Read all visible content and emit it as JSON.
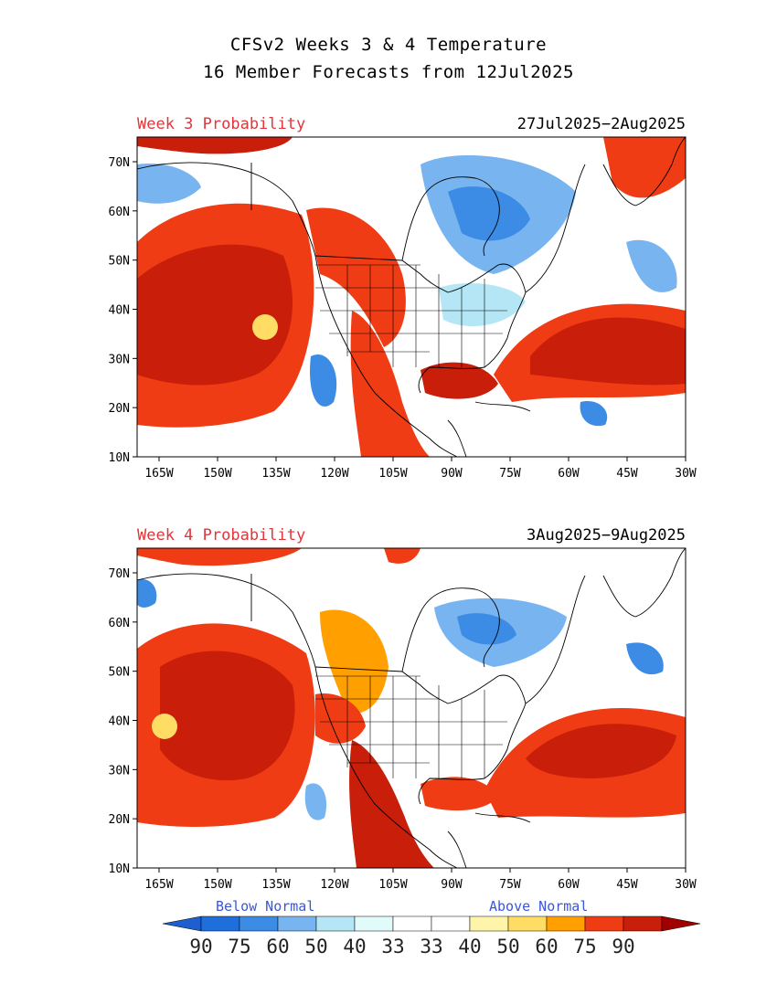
{
  "header": {
    "title_line1": "CFSv2 Weeks 3 & 4 Temperature",
    "title_line2": "16 Member Forecasts from 12Jul2025"
  },
  "panels": [
    {
      "label": "Week 3 Probability",
      "dates": "27Jul2025−2Aug2025"
    },
    {
      "label": "Week 4 Probability",
      "dates": "3Aug2025−9Aug2025"
    }
  ],
  "axes": {
    "lat_labels": [
      "70N",
      "60N",
      "50N",
      "40N",
      "30N",
      "20N",
      "10N"
    ],
    "lon_labels": [
      "165W",
      "150W",
      "135W",
      "120W",
      "105W",
      "90W",
      "75W",
      "60W",
      "45W",
      "30W"
    ]
  },
  "legend": {
    "below_label": "Below Normal",
    "above_label": "Above Normal",
    "below_values": [
      "90",
      "75",
      "60",
      "50",
      "40",
      "33"
    ],
    "above_values": [
      "33",
      "40",
      "50",
      "60",
      "75",
      "90"
    ],
    "colors": [
      "#1e6fdc",
      "#3c8ce6",
      "#78b4f0",
      "#b4e6f5",
      "#e1fafa",
      "#ffffff",
      "#ffffff",
      "#fff5aa",
      "#ffdc64",
      "#ffa000",
      "#f03c14",
      "#c81e0a"
    ],
    "low_end_color": "#1e5fd0",
    "high_end_color": "#a00000"
  }
}
